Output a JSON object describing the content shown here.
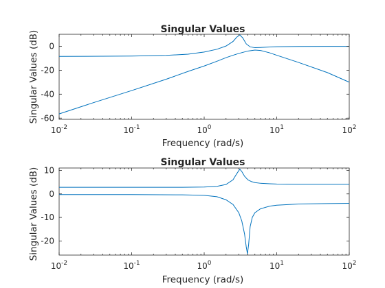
{
  "figure": {
    "background": "#ffffff",
    "axes_color": "#262626",
    "line_color": "#0072BD"
  },
  "chart_data": [
    {
      "type": "line",
      "title": "Singular Values",
      "xlabel": "Frequency (rad/s)",
      "ylabel": "Singular Values (dB)",
      "xscale": "log",
      "xlim": [
        0.01,
        100
      ],
      "ylim": [
        -61,
        10
      ],
      "xticks": [
        {
          "value": 0.01,
          "base": "10",
          "exp": "-2"
        },
        {
          "value": 0.1,
          "base": "10",
          "exp": "-1"
        },
        {
          "value": 1,
          "base": "10",
          "exp": "0"
        },
        {
          "value": 10,
          "base": "10",
          "exp": "1"
        },
        {
          "value": 100,
          "base": "10",
          "exp": "2"
        }
      ],
      "yticks": [
        {
          "value": 0,
          "label": "0"
        },
        {
          "value": -20,
          "label": "-20"
        },
        {
          "value": -40,
          "label": "-40"
        },
        {
          "value": -60,
          "label": "-60"
        }
      ],
      "grid": false,
      "series": [
        {
          "x": [
            0.01,
            0.1,
            0.3,
            0.6,
            1,
            1.5,
            2,
            2.5,
            2.8,
            3.1,
            3.4,
            3.8,
            4.3,
            5,
            6,
            8,
            10,
            20,
            50,
            100
          ],
          "y": [
            -8.5,
            -8.2,
            -7.6,
            -6.6,
            -4.8,
            -2.5,
            0.2,
            4.0,
            7.5,
            9.5,
            7.0,
            2.0,
            -0.5,
            -1.2,
            -1.0,
            -0.6,
            -0.4,
            -0.2,
            -0.1,
            -0.1
          ]
        },
        {
          "x": [
            0.01,
            0.03,
            0.1,
            0.3,
            0.6,
            1,
            1.5,
            2,
            2.5,
            3,
            4,
            5,
            6,
            8,
            10,
            20,
            50,
            100
          ],
          "y": [
            -56.5,
            -47.0,
            -37.0,
            -27.5,
            -21.0,
            -16.5,
            -12.5,
            -9.5,
            -7.5,
            -6.0,
            -4.0,
            -3.2,
            -3.5,
            -5.5,
            -7.5,
            -13.5,
            -22.0,
            -30.0
          ]
        }
      ]
    },
    {
      "type": "line",
      "title": "Singular Values",
      "xlabel": "Frequency (rad/s)",
      "ylabel": "Singular Values (dB)",
      "xscale": "log",
      "xlim": [
        0.01,
        100
      ],
      "ylim": [
        -26,
        11
      ],
      "xticks": [
        {
          "value": 0.01,
          "base": "10",
          "exp": "-2"
        },
        {
          "value": 0.1,
          "base": "10",
          "exp": "-1"
        },
        {
          "value": 1,
          "base": "10",
          "exp": "0"
        },
        {
          "value": 10,
          "base": "10",
          "exp": "1"
        },
        {
          "value": 100,
          "base": "10",
          "exp": "2"
        }
      ],
      "yticks": [
        {
          "value": 10,
          "label": "10"
        },
        {
          "value": 0,
          "label": "0"
        },
        {
          "value": -10,
          "label": "-10"
        },
        {
          "value": -20,
          "label": "-20"
        }
      ],
      "grid": false,
      "series": [
        {
          "x": [
            0.01,
            0.1,
            0.5,
            1,
            1.5,
            2,
            2.5,
            2.8,
            3.1,
            3.3,
            3.6,
            4,
            4.5,
            5,
            6,
            8,
            10,
            20,
            50,
            100
          ],
          "y": [
            2.8,
            2.8,
            2.8,
            2.9,
            3.2,
            4.0,
            6.0,
            8.5,
            10.5,
            9.5,
            7.5,
            6.0,
            5.2,
            4.8,
            4.5,
            4.3,
            4.2,
            4.1,
            4.1,
            4.1
          ]
        },
        {
          "x": [
            0.01,
            0.1,
            0.5,
            1,
            1.5,
            2,
            2.5,
            3,
            3.3,
            3.6,
            3.8,
            3.95,
            4.1,
            4.3,
            4.6,
            5,
            6,
            8,
            10,
            20,
            50,
            100
          ],
          "y": [
            -0.3,
            -0.3,
            -0.4,
            -0.6,
            -1.2,
            -2.5,
            -4.5,
            -8.0,
            -11.5,
            -17.0,
            -22.5,
            -25.5,
            -21.5,
            -14.0,
            -10.0,
            -8.0,
            -6.3,
            -5.2,
            -4.8,
            -4.3,
            -4.1,
            -4.0
          ]
        }
      ]
    }
  ]
}
